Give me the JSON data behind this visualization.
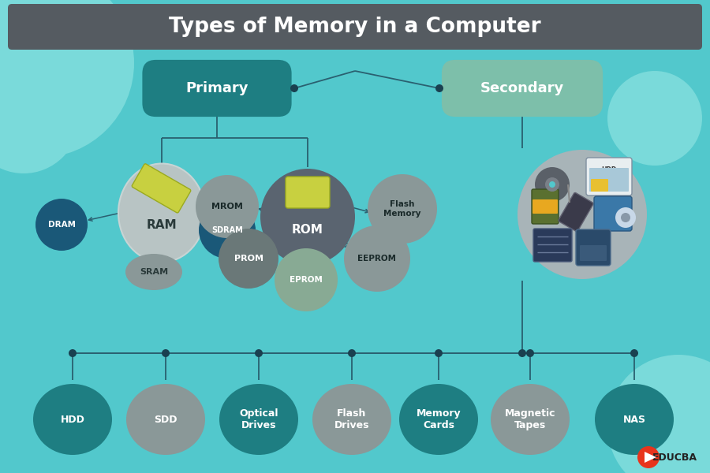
{
  "title": "Types of Memory in a Computer",
  "title_bg": "#555b61",
  "title_color": "#ffffff",
  "bg_color": "#52c8cc",
  "primary_label": "Primary",
  "primary_color": "#1e7e82",
  "secondary_label": "Secondary",
  "secondary_color": "#7dbfaa",
  "ram_color": "#b8c4c4",
  "rom_color": "#5a6470",
  "mrom_color": "#8a9898",
  "prom_color": "#6a7878",
  "eprom_color": "#88aa94",
  "eeprom_color": "#8a9898",
  "flash_color": "#8a9898",
  "dram_color": "#1a5878",
  "sdram_color": "#1a5878",
  "sram_color": "#8a9898",
  "secondary_img_color": "#a8b4b8",
  "bottom_nodes": [
    "HDD",
    "SDD",
    "Optical\nDrives",
    "Flash\nDrives",
    "Memory\nCards",
    "Magnetic\nTapes",
    "NAS"
  ],
  "bottom_colors": [
    "#1e7e82",
    "#8a9898",
    "#1e7e82",
    "#8a9898",
    "#1e7e82",
    "#8a9898",
    "#1e7e82"
  ],
  "line_color": "#2a6070",
  "educba_color": "#e8341c",
  "dot_color": "#1a4050"
}
